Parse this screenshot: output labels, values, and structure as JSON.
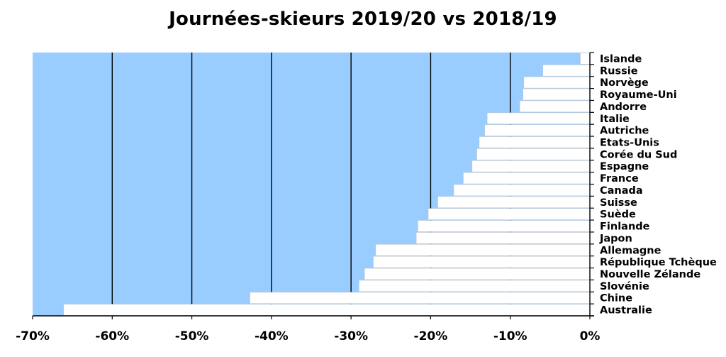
{
  "chart_data": {
    "type": "bar",
    "orientation": "horizontal",
    "title": "Journées-skieurs 2019/20 vs 2018/19",
    "xlabel": "",
    "ylabel": "",
    "xlim": [
      -70,
      0
    ],
    "x_ticks": [
      -70,
      -60,
      -50,
      -40,
      -30,
      -20,
      -10,
      0
    ],
    "x_tick_labels": [
      "-70%",
      "-60%",
      "-50%",
      "-40%",
      "-30%",
      "-20%",
      "-10%",
      "0%"
    ],
    "grid": "vertical",
    "plot_background": "#99ccff",
    "bar_color": "#ffffff",
    "categories": [
      "Islande",
      "Russie",
      "Norvège",
      "Royaume-Uni",
      "Andorre",
      "Italie",
      "Autriche",
      "Etats-Unis",
      "Corée du Sud",
      "Espagne",
      "France",
      "Canada",
      "Suisse",
      "Suède",
      "Finlande",
      "Japon",
      "Allemagne",
      "République Tchèque",
      "Nouvelle Zélande",
      "Slovénie",
      "Chine",
      "Australie"
    ],
    "values": [
      -1.2,
      -5.9,
      -8.3,
      -8.4,
      -8.8,
      -12.9,
      -13.2,
      -13.9,
      -14.2,
      -14.8,
      -15.9,
      -17.1,
      -19.1,
      -20.3,
      -21.6,
      -21.8,
      -26.9,
      -27.2,
      -28.3,
      -29.0,
      -42.7,
      -66.1
    ]
  }
}
